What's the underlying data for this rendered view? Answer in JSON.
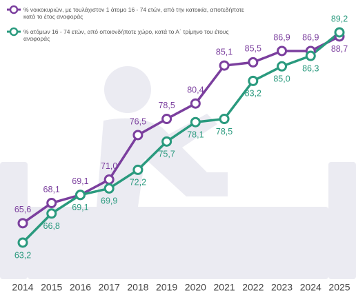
{
  "chart_data": {
    "type": "line",
    "categories": [
      "2014",
      "2015",
      "2016",
      "2017",
      "2018",
      "2019",
      "2020",
      "2021",
      "2022",
      "2023",
      "2024",
      "2025"
    ],
    "series": [
      {
        "name": "% νοικοκυριών, με τουλάχιστον 1 άτομο 16 - 74 ετών, από την κατοικία, αποτεδήποτε κατά το έτος αναφοράς",
        "color": "#7b3f9e",
        "values": [
          65.6,
          68.1,
          69.1,
          71.0,
          76.5,
          78.5,
          80.4,
          85.1,
          85.5,
          86.9,
          86.9,
          88.7
        ],
        "value_labels": [
          "65,6",
          "68,1",
          "69,1",
          "71,0",
          "76,5",
          "78,5",
          "80,4",
          "85,1",
          "85,5",
          "86,9",
          "86,9",
          "88,7"
        ]
      },
      {
        "name": "% ατόμων 16 - 74 ετών, από οποιονδήποτε χώρο, κατά το Α΄ τρίμηνο του έτους αναφοράς",
        "color": "#2a9a7e",
        "values": [
          63.2,
          66.8,
          69.1,
          69.9,
          72.2,
          75.7,
          78.1,
          78.5,
          83.2,
          85.0,
          86.3,
          89.2
        ],
        "value_labels": [
          "63,2",
          "66,8",
          "69,1",
          "69,9",
          "72,2",
          "75,7",
          "78,1",
          "78,5",
          "83,2",
          "85,0",
          "86,3",
          "89,2"
        ]
      }
    ]
  }
}
